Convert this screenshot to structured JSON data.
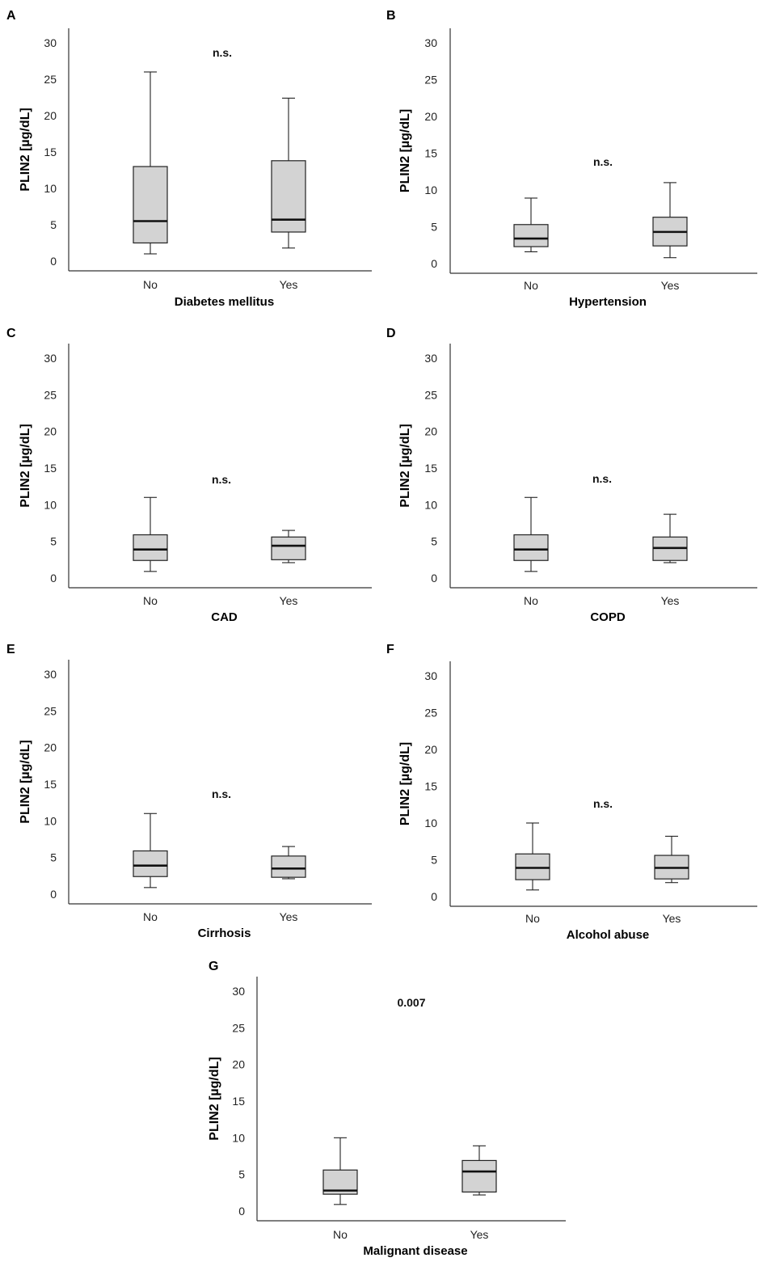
{
  "chart_data": [
    {
      "panel": "A",
      "type": "box",
      "ylabel": "PLIN2 [µg/dL]",
      "xlabel": "Diabetes mellitus",
      "categories": [
        "No",
        "Yes"
      ],
      "yticks": [
        0,
        5,
        10,
        15,
        20,
        25,
        30
      ],
      "ylim": [
        -1,
        32
      ],
      "significance": "n.s.",
      "boxes": [
        {
          "category": "No",
          "min": 1.0,
          "q1": 2.5,
          "median": 5.5,
          "q3": 13.0,
          "max": 26.0
        },
        {
          "category": "Yes",
          "min": 1.8,
          "q1": 4.0,
          "median": 5.7,
          "q3": 13.8,
          "max": 22.4
        }
      ]
    },
    {
      "panel": "B",
      "type": "box",
      "ylabel": "PLIN2 [µg/dL]",
      "xlabel": "Hypertension",
      "categories": [
        "No",
        "Yes"
      ],
      "yticks": [
        0,
        5,
        10,
        15,
        20,
        25,
        30
      ],
      "ylim": [
        -1,
        32
      ],
      "significance": "n.s.",
      "boxes": [
        {
          "category": "No",
          "min": 1.6,
          "q1": 2.3,
          "median": 3.4,
          "q3": 5.3,
          "max": 8.9
        },
        {
          "category": "Yes",
          "min": 0.8,
          "q1": 2.4,
          "median": 4.3,
          "q3": 6.3,
          "max": 11.0
        }
      ]
    },
    {
      "panel": "C",
      "type": "box",
      "ylabel": "PLIN2 [µg/dL]",
      "xlabel": "CAD",
      "categories": [
        "No",
        "Yes"
      ],
      "yticks": [
        0,
        5,
        10,
        15,
        20,
        25,
        30
      ],
      "ylim": [
        -1,
        32
      ],
      "significance": "n.s.",
      "boxes": [
        {
          "category": "No",
          "min": 0.9,
          "q1": 2.4,
          "median": 3.9,
          "q3": 5.9,
          "max": 11.0
        },
        {
          "category": "Yes",
          "min": 2.1,
          "q1": 2.5,
          "median": 4.4,
          "q3": 5.6,
          "max": 6.5
        }
      ]
    },
    {
      "panel": "D",
      "type": "box",
      "ylabel": "PLIN2 [µg/dL]",
      "xlabel": "COPD",
      "categories": [
        "No",
        "Yes"
      ],
      "yticks": [
        0,
        5,
        10,
        15,
        20,
        25,
        30
      ],
      "ylim": [
        -1,
        32
      ],
      "significance": "n.s.",
      "boxes": [
        {
          "category": "No",
          "min": 0.9,
          "q1": 2.4,
          "median": 3.9,
          "q3": 5.9,
          "max": 11.0
        },
        {
          "category": "Yes",
          "min": 2.1,
          "q1": 2.4,
          "median": 4.1,
          "q3": 5.6,
          "max": 8.7
        }
      ]
    },
    {
      "panel": "E",
      "type": "box",
      "ylabel": "PLIN2 [µg/dL]",
      "xlabel": "Cirrhosis",
      "categories": [
        "No",
        "Yes"
      ],
      "yticks": [
        0,
        5,
        10,
        15,
        20,
        25,
        30
      ],
      "ylim": [
        -1,
        32
      ],
      "significance": "n.s.",
      "boxes": [
        {
          "category": "No",
          "min": 0.9,
          "q1": 2.4,
          "median": 3.9,
          "q3": 5.9,
          "max": 11.0
        },
        {
          "category": "Yes",
          "min": 2.1,
          "q1": 2.3,
          "median": 3.5,
          "q3": 5.2,
          "max": 6.5
        }
      ]
    },
    {
      "panel": "F",
      "type": "box",
      "ylabel": "PLIN2 [µg/dL]",
      "xlabel": "Alcohol abuse",
      "categories": [
        "No",
        "Yes"
      ],
      "yticks": [
        0,
        5,
        10,
        15,
        20,
        25,
        30
      ],
      "ylim": [
        -1,
        32
      ],
      "significance": "n.s.",
      "boxes": [
        {
          "category": "No",
          "min": 0.9,
          "q1": 2.3,
          "median": 3.9,
          "q3": 5.8,
          "max": 10.0
        },
        {
          "category": "Yes",
          "min": 1.9,
          "q1": 2.4,
          "median": 3.9,
          "q3": 5.6,
          "max": 8.2
        }
      ]
    },
    {
      "panel": "G",
      "type": "box",
      "ylabel": "PLIN2 [µg/dL]",
      "xlabel": "Malignant disease",
      "categories": [
        "No",
        "Yes"
      ],
      "yticks": [
        0,
        5,
        10,
        15,
        20,
        25,
        30
      ],
      "ylim": [
        -1,
        32
      ],
      "significance": "0.007",
      "boxes": [
        {
          "category": "No",
          "min": 0.9,
          "q1": 2.3,
          "median": 2.8,
          "q3": 5.6,
          "max": 10.0
        },
        {
          "category": "Yes",
          "min": 2.2,
          "q1": 2.6,
          "median": 5.4,
          "q3": 6.9,
          "max": 8.9
        }
      ]
    }
  ]
}
